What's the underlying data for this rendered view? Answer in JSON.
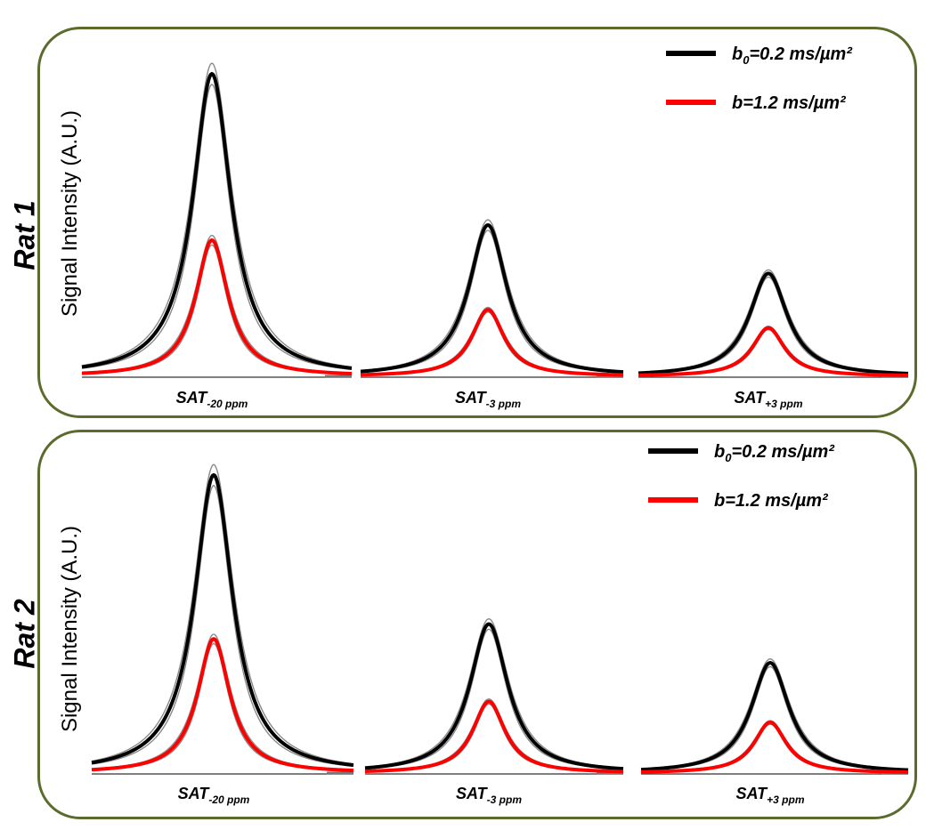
{
  "chart_data": [
    {
      "type": "line",
      "title": "Rat 1",
      "ylabel": "Signal Intensity (A.U.)",
      "xlabel": "",
      "legend": [
        {
          "base": "b",
          "sub": "0",
          "rest": "=0.2 ms/µm²",
          "color": "#000000"
        },
        {
          "base": "b",
          "sub": "",
          "rest": "=1.2 ms/µm²",
          "color": "#ff0000"
        }
      ],
      "subplots": [
        {
          "label_base": "SAT",
          "label_sub": "-20 ppm",
          "series": [
            {
              "name": "b0=0.2 ms/µm²",
              "peak": 1.0,
              "width": 1.0
            },
            {
              "name": "b=1.2 ms/µm²",
              "peak": 0.45,
              "width": 0.85
            }
          ]
        },
        {
          "label_base": "SAT",
          "label_sub": "-3 ppm",
          "series": [
            {
              "name": "b0=0.2 ms/µm²",
              "peak": 0.5,
              "width": 1.0
            },
            {
              "name": "b=1.2 ms/µm²",
              "peak": 0.22,
              "width": 0.85
            }
          ]
        },
        {
          "label_base": "SAT",
          "label_sub": "+3 ppm",
          "series": [
            {
              "name": "b0=0.2 ms/µm²",
              "peak": 0.34,
              "width": 1.0
            },
            {
              "name": "b=1.2 ms/µm²",
              "peak": 0.16,
              "width": 0.85
            }
          ]
        }
      ]
    },
    {
      "type": "line",
      "title": "Rat 2",
      "ylabel": "Signal Intensity (A.U.)",
      "xlabel": "",
      "legend": [
        {
          "base": "b",
          "sub": "0",
          "rest": "=0.2 ms/µm²",
          "color": "#000000"
        },
        {
          "base": "b",
          "sub": "",
          "rest": "=1.2 ms/µm²",
          "color": "#ff0000"
        }
      ],
      "subplots": [
        {
          "label_base": "SAT",
          "label_sub": "-20 ppm",
          "series": [
            {
              "name": "b0=0.2 ms/µm²",
              "peak": 1.0,
              "width": 1.0
            },
            {
              "name": "b=1.2 ms/µm²",
              "peak": 0.45,
              "width": 0.85
            }
          ]
        },
        {
          "label_base": "SAT",
          "label_sub": "-3 ppm",
          "series": [
            {
              "name": "b0=0.2 ms/µm²",
              "peak": 0.5,
              "width": 1.0
            },
            {
              "name": "b=1.2 ms/µm²",
              "peak": 0.24,
              "width": 0.85
            }
          ]
        },
        {
          "label_base": "SAT",
          "label_sub": "+3 ppm",
          "series": [
            {
              "name": "b0=0.2 ms/µm²",
              "peak": 0.37,
              "width": 1.0
            },
            {
              "name": "b=1.2 ms/µm²",
              "peak": 0.17,
              "width": 0.85
            }
          ]
        }
      ]
    }
  ]
}
